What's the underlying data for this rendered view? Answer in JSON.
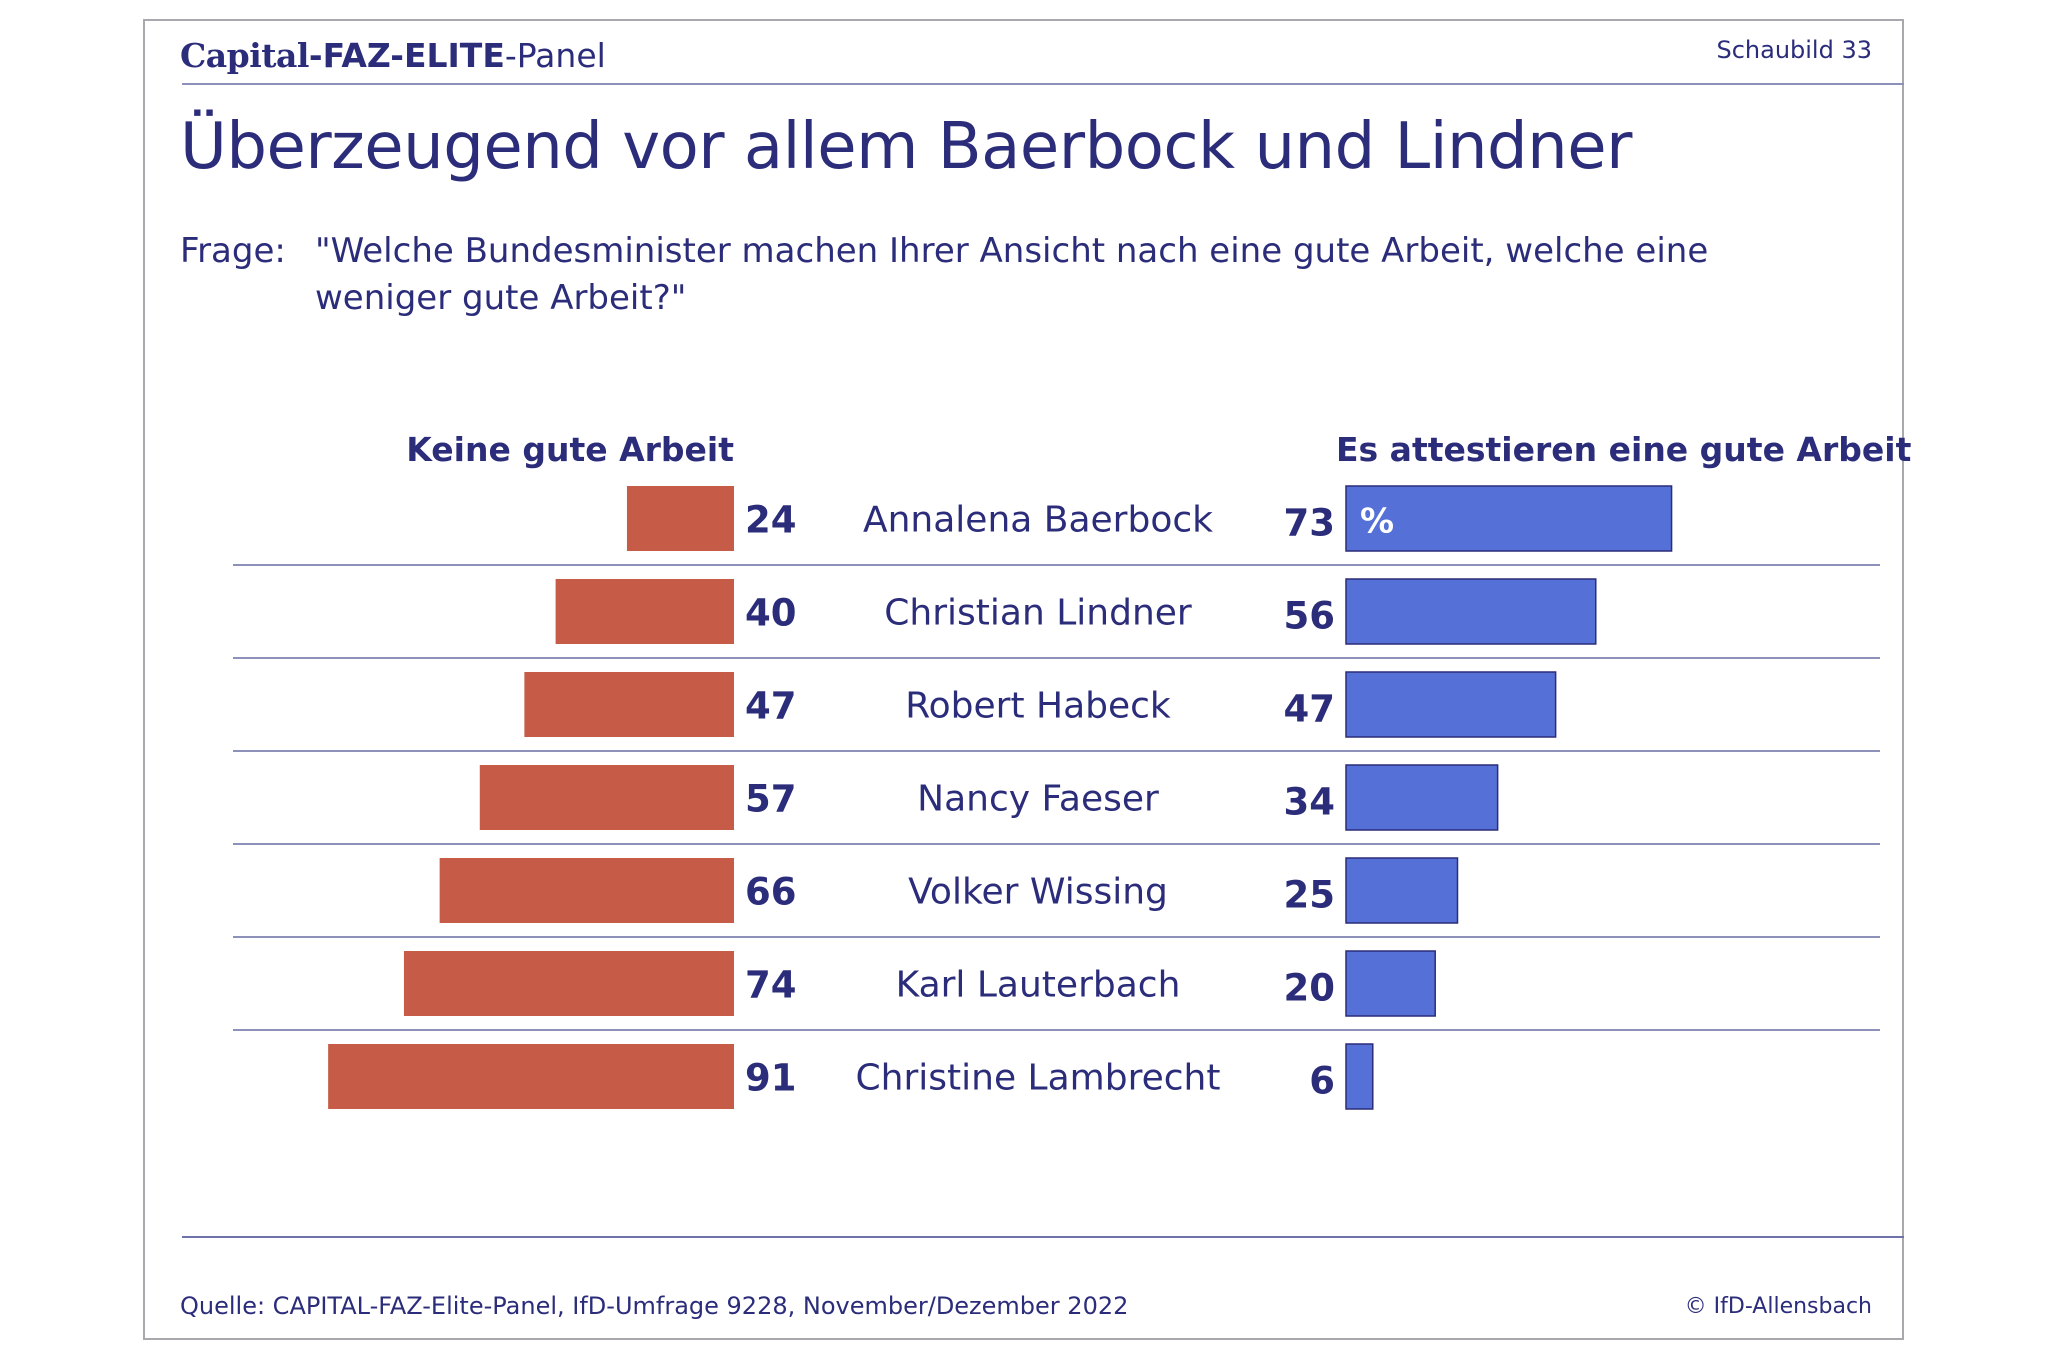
{
  "header": {
    "brand_capital": "Capital",
    "brand_faz": "-FAZ-ELITE",
    "brand_panel": "-Panel",
    "figure_number": "Schaubild 33"
  },
  "title": "Überzeugend vor allem Baerbock und Lindner",
  "question": {
    "prefix": "Frage:",
    "line1": "\"Welche Bundesminister machen Ihrer Ansicht nach eine gute Arbeit, welche eine",
    "line2": "weniger gute Arbeit?\""
  },
  "footer": {
    "source": "Quelle: CAPITAL-FAZ-Elite-Panel, IfD-Umfrage 9228, November/Dezember 2022",
    "copyright": "© IfD-Allensbach"
  },
  "colors": {
    "left_bar": "#c65c47",
    "right_bar": "#5570d6",
    "text": "#2b2c7a"
  },
  "chart_data": {
    "type": "bar",
    "orientation": "horizontal-diverging",
    "left_header": "Keine gute Arbeit",
    "right_header": "Es attestieren eine gute Arbeit",
    "unit_label": "%",
    "categories": [
      "Annalena Baerbock",
      "Christian Lindner",
      "Robert Habeck",
      "Nancy Faeser",
      "Volker Wissing",
      "Karl Lauterbach",
      "Christine Lambrecht"
    ],
    "series": [
      {
        "name": "Keine gute Arbeit",
        "values": [
          24,
          40,
          47,
          57,
          66,
          74,
          91
        ]
      },
      {
        "name": "Es attestieren eine gute Arbeit",
        "values": [
          73,
          56,
          47,
          34,
          25,
          20,
          6
        ]
      }
    ]
  }
}
